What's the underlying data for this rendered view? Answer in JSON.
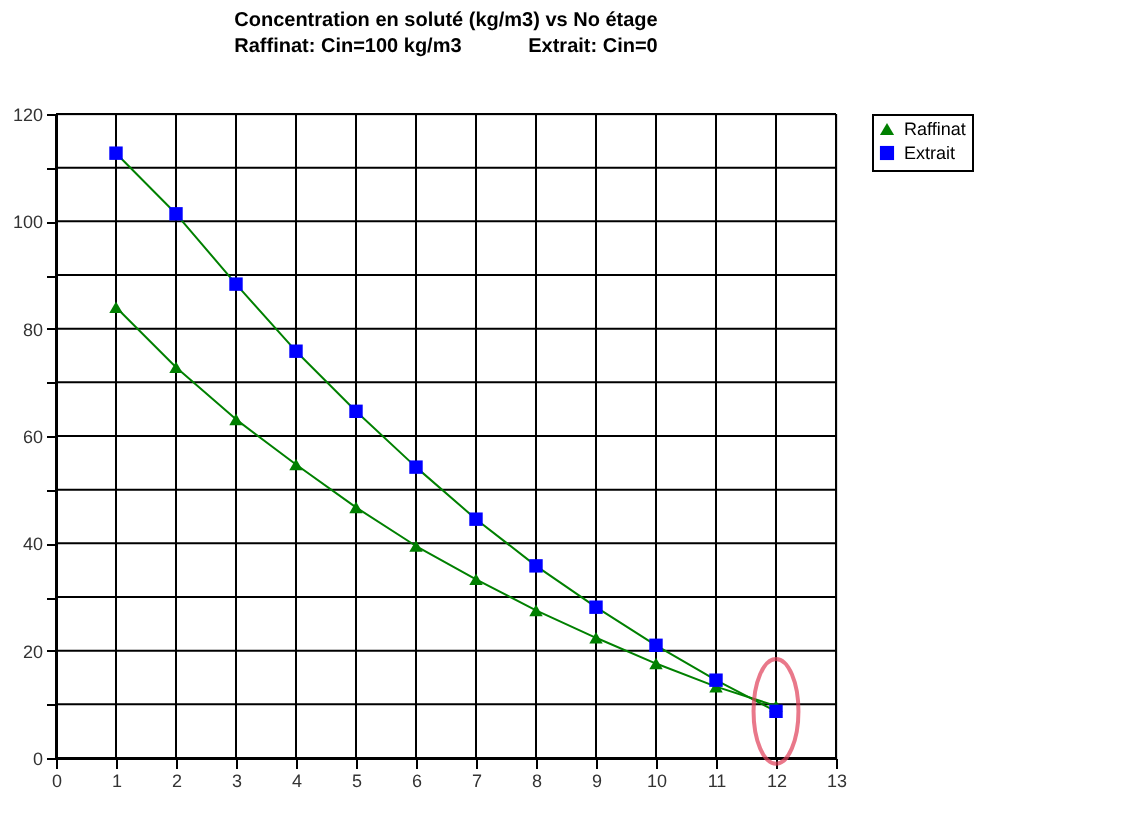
{
  "chart_data": {
    "type": "line",
    "title": "Concentration en soluté (kg/m3) vs No étage",
    "subtitle": "Raffinat: Cin=100 kg/m3            Extrait: Cin=0",
    "x": [
      1,
      2,
      3,
      4,
      5,
      6,
      7,
      8,
      9,
      10,
      11,
      12
    ],
    "series": [
      {
        "name": "Raffinat",
        "color": "#008000",
        "marker": "triangle",
        "values": [
          84,
          72.8,
          63.1,
          54.7,
          46.7,
          39.5,
          33.3,
          27.5,
          22.4,
          17.6,
          13.3,
          9.7
        ]
      },
      {
        "name": "Extrait",
        "color": "#0000ff",
        "marker": "square",
        "values": [
          112.7,
          101.4,
          88.3,
          75.8,
          64.6,
          54.2,
          44.5,
          35.8,
          28.1,
          21.0,
          14.5,
          8.7
        ]
      }
    ],
    "xlim": [
      0,
      13
    ],
    "xticks": [
      0,
      1,
      2,
      3,
      4,
      5,
      6,
      7,
      8,
      9,
      10,
      11,
      12,
      13
    ],
    "ylim": [
      0,
      120
    ],
    "yticks": [
      0,
      {
        "value": 10,
        "label": null
      },
      20,
      {
        "value": 30,
        "label": null
      },
      40,
      {
        "value": 50,
        "label": null
      },
      60,
      {
        "value": 70,
        "label": null
      },
      80,
      {
        "value": 90,
        "label": null
      },
      100,
      {
        "value": 110,
        "label": null
      },
      120
    ],
    "grid": true,
    "legend": "right",
    "line_style": "solid"
  }
}
